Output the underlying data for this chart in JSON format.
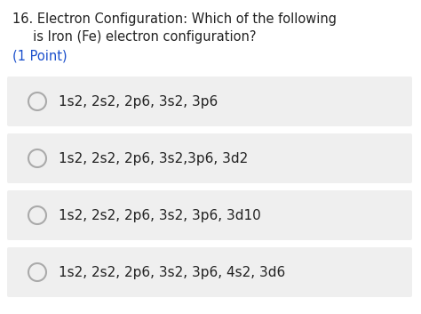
{
  "title_line1": "16. Electron Configuration: Which of the following",
  "title_line2": "     is Iron (Fe) electron configuration?",
  "points_text": "(1 Point)",
  "options": [
    "1s2, 2s2, 2p6, 3s2, 3p6",
    "1s2, 2s2, 2p6, 3s2,3p6, 3d2",
    "1s2, 2s2, 2p6, 3s2, 3p6, 3d10",
    "1s2, 2s2, 2p6, 3s2, 3p6, 4s2, 3d6"
  ],
  "bg_color": "#ffffff",
  "option_bg_color": "#efefef",
  "title_color": "#222222",
  "points_color": "#1a4fcc",
  "option_text_color": "#222222",
  "circle_edge_color": "#aaaaaa",
  "title_fontsize": 10.5,
  "points_fontsize": 10.5,
  "option_fontsize": 11.0,
  "fig_width": 4.74,
  "fig_height": 3.53,
  "dpi": 100
}
